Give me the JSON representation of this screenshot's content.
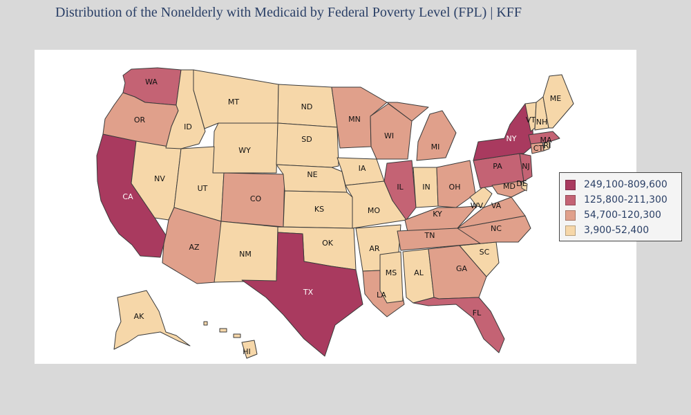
{
  "title": "Distribution of the Nonelderly with Medicaid by Federal Poverty Level (FPL) | KFF",
  "legend": [
    {
      "label": "249,100-809,600",
      "color": "#a93a5f"
    },
    {
      "label": "125,800-211,300",
      "color": "#c46374"
    },
    {
      "label": "54,700-120,300",
      "color": "#e0a08b"
    },
    {
      "label": "3,900-52,400",
      "color": "#f6d7a9"
    }
  ],
  "states": [
    {
      "abbr": "WA",
      "tier": 1
    },
    {
      "abbr": "OR",
      "tier": 2
    },
    {
      "abbr": "CA",
      "tier": 0
    },
    {
      "abbr": "NV",
      "tier": 3
    },
    {
      "abbr": "ID",
      "tier": 3
    },
    {
      "abbr": "MT",
      "tier": 3
    },
    {
      "abbr": "WY",
      "tier": 3
    },
    {
      "abbr": "UT",
      "tier": 3
    },
    {
      "abbr": "AZ",
      "tier": 2
    },
    {
      "abbr": "CO",
      "tier": 2
    },
    {
      "abbr": "NM",
      "tier": 3
    },
    {
      "abbr": "ND",
      "tier": 3
    },
    {
      "abbr": "SD",
      "tier": 3
    },
    {
      "abbr": "NE",
      "tier": 3
    },
    {
      "abbr": "KS",
      "tier": 3
    },
    {
      "abbr": "OK",
      "tier": 3
    },
    {
      "abbr": "TX",
      "tier": 0
    },
    {
      "abbr": "MN",
      "tier": 2
    },
    {
      "abbr": "IA",
      "tier": 3
    },
    {
      "abbr": "MO",
      "tier": 3
    },
    {
      "abbr": "AR",
      "tier": 3
    },
    {
      "abbr": "LA",
      "tier": 2
    },
    {
      "abbr": "WI",
      "tier": 2
    },
    {
      "abbr": "IL",
      "tier": 1
    },
    {
      "abbr": "MI",
      "tier": 2
    },
    {
      "abbr": "IN",
      "tier": 3
    },
    {
      "abbr": "OH",
      "tier": 2
    },
    {
      "abbr": "KY",
      "tier": 2
    },
    {
      "abbr": "TN",
      "tier": 2
    },
    {
      "abbr": "MS",
      "tier": 3
    },
    {
      "abbr": "AL",
      "tier": 3
    },
    {
      "abbr": "GA",
      "tier": 2
    },
    {
      "abbr": "FL",
      "tier": 1
    },
    {
      "abbr": "SC",
      "tier": 3
    },
    {
      "abbr": "NC",
      "tier": 2
    },
    {
      "abbr": "VA",
      "tier": 2
    },
    {
      "abbr": "WV",
      "tier": 3
    },
    {
      "abbr": "PA",
      "tier": 1
    },
    {
      "abbr": "NY",
      "tier": 0
    },
    {
      "abbr": "NJ",
      "tier": 1
    },
    {
      "abbr": "MD",
      "tier": 2
    },
    {
      "abbr": "DE",
      "tier": 3
    },
    {
      "abbr": "CT",
      "tier": 2
    },
    {
      "abbr": "RI",
      "tier": 3
    },
    {
      "abbr": "MA",
      "tier": 1
    },
    {
      "abbr": "VT",
      "tier": 3
    },
    {
      "abbr": "NH",
      "tier": 3
    },
    {
      "abbr": "ME",
      "tier": 3
    },
    {
      "abbr": "AK",
      "tier": 3
    },
    {
      "abbr": "HI",
      "tier": 3
    }
  ]
}
